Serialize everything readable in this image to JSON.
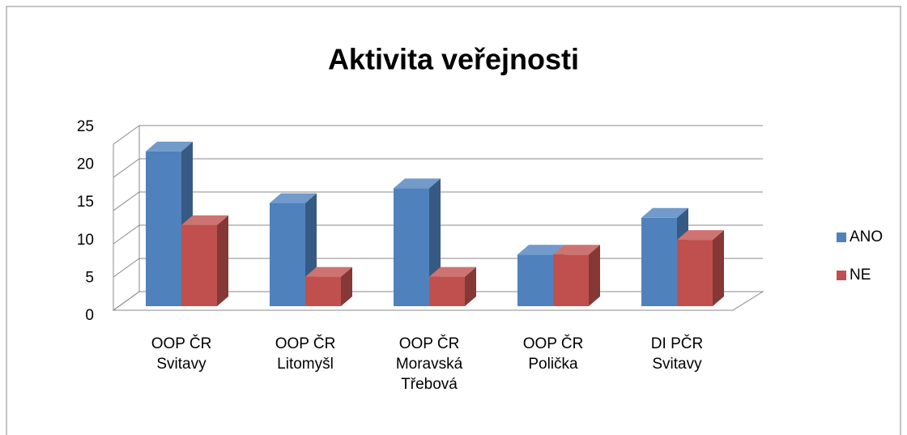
{
  "chart_data": {
    "type": "bar3d",
    "title": "Aktivita veřejnosti",
    "categories": [
      "OOP ČR Svitavy",
      "OOP ČR Litomyšl",
      "OOP ČR Moravská Třebová",
      "OOP ČR Polička",
      "DI PČR Svitavy"
    ],
    "series": [
      {
        "name": "ANO",
        "color": "#4f81bd",
        "values": [
          21,
          14,
          16,
          7,
          12
        ]
      },
      {
        "name": "NE",
        "color": "#c0504d",
        "values": [
          11,
          4,
          4,
          7,
          9
        ]
      }
    ],
    "ylim": [
      0,
      25
    ],
    "yticks": [
      0,
      5,
      10,
      15,
      20,
      25
    ],
    "grid": true,
    "legend": "right"
  }
}
